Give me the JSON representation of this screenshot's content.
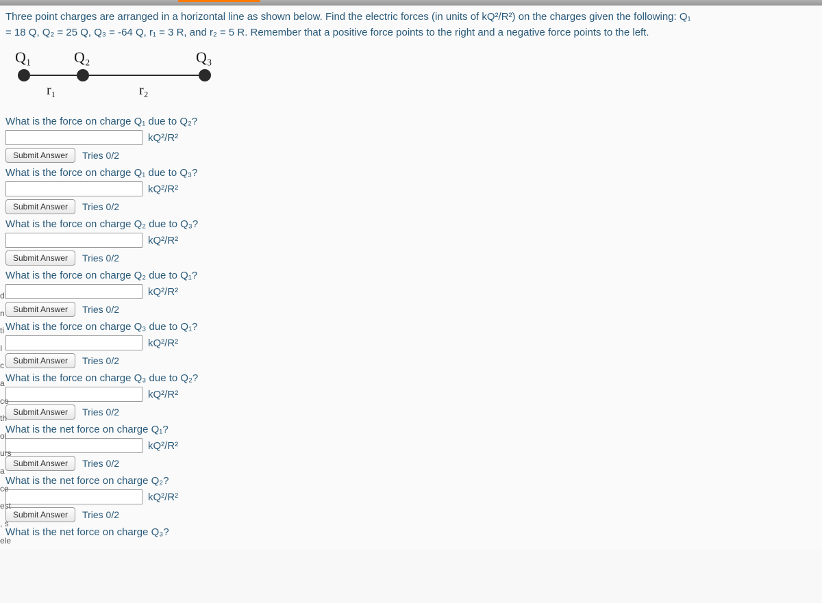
{
  "problem": {
    "line1": "Three point charges are arranged in a horizontal line as shown below. Find the electric forces (in units of kQ²/R²) on the charges given the following: Q₁",
    "line2": "= 18 Q, Q₂ = 25 Q, Q₃ = -64 Q, r₁ = 3 R, and r₂ = 5 R. Remember that a positive force points to the right and a negative force points to the left."
  },
  "diagram": {
    "labels": {
      "q1": "Q₁",
      "q2": "Q₂",
      "q3": "Q₃",
      "r1": "r₁",
      "r2": "r₂"
    }
  },
  "unit": "kQ²/R²",
  "submit_label": "Submit Answer",
  "tries": "Tries 0/2",
  "questions": [
    {
      "text": "What is the force on charge Q₁ due to Q₂?"
    },
    {
      "text": "What is the force on charge Q₁ due to Q₃?"
    },
    {
      "text": "What is the force on charge Q₂ due to Q₃?"
    },
    {
      "text": "What is the force on charge Q₂ due to Q₁?"
    },
    {
      "text": "What is the force on charge Q₃ due to Q₁?"
    },
    {
      "text": "What is the force on charge Q₃ due to Q₂?"
    },
    {
      "text": "What is the net force on charge Q₁?"
    },
    {
      "text": "What is the net force on charge Q₂?"
    },
    {
      "text": "What is the net force on charge Q₃?"
    }
  ],
  "left_edge": [
    "d",
    "n",
    "ti",
    "I",
    "c",
    "a",
    "co",
    "th",
    "ol",
    "urs",
    "a",
    "ce",
    "est",
    ", s",
    "ele"
  ],
  "colors": {
    "text_primary": "#2a5a7a",
    "background": "#fafafa",
    "charge": "#2a2a2a",
    "accent": "#ff7a00"
  }
}
